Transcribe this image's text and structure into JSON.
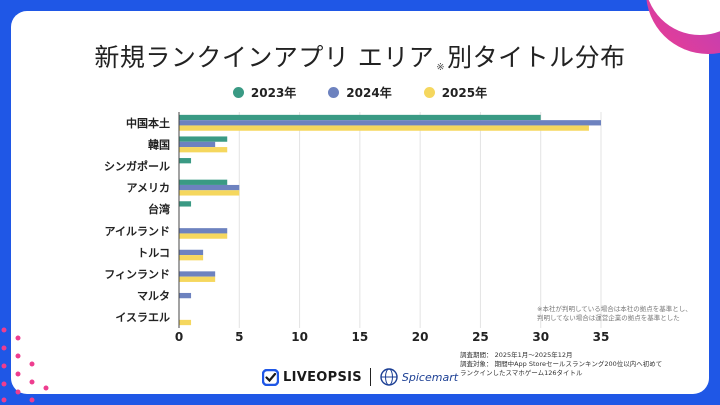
{
  "header": {
    "title_main": "新規ランクインアプリ エリア",
    "title_mark": "※",
    "title_suffix": "別タイトル分布"
  },
  "legend": [
    {
      "label": "2023年",
      "color": "#3a9a84"
    },
    {
      "label": "2024年",
      "color": "#6d82bf"
    },
    {
      "label": "2025年",
      "color": "#f5d75e"
    }
  ],
  "chart_data": {
    "type": "bar",
    "orientation": "horizontal",
    "title": "新規ランクインアプリ エリア※別タイトル分布",
    "categories": [
      "中国本土",
      "韓国",
      "シンガポール",
      "アメリカ",
      "台湾",
      "アイルランド",
      "トルコ",
      "フィンランド",
      "マルタ",
      "イスラエル"
    ],
    "series": [
      {
        "name": "2023年",
        "color": "#3a9a84",
        "values": [
          30,
          4,
          1,
          4,
          1,
          0,
          0,
          0,
          0,
          0
        ]
      },
      {
        "name": "2024年",
        "color": "#6d82bf",
        "values": [
          35,
          3,
          0,
          5,
          0,
          4,
          2,
          3,
          1,
          0
        ]
      },
      {
        "name": "2025年",
        "color": "#f5d75e",
        "values": [
          34,
          4,
          0,
          5,
          0,
          4,
          2,
          3,
          0,
          1
        ]
      }
    ],
    "xlim": [
      0,
      35
    ],
    "x_ticks": [
      0,
      5,
      10,
      15,
      20,
      25,
      30,
      35
    ],
    "grid": true,
    "legend_position": "top"
  },
  "notes": {
    "area_note_line1": "※本社が判明している場合は本社の拠点を基準とし、",
    "area_note_line2": "判明してない場合は運営企業の拠点を基準とした",
    "survey_period": "調査期間： 2025年1月〜2025年12月",
    "survey_target": "調査対象： 期間中App Storeセールスランキング200位以内へ初めて",
    "survey_target2": "ランクインしたスマホゲーム126タイトル"
  },
  "footer": {
    "liveopsis": "LIVEOPSIS",
    "spicemart": "Spicemart"
  },
  "colors": {
    "frame": "#1f57e6",
    "accent_pink": "#ee3d8f",
    "accent_purple": "#8c3fe0"
  }
}
